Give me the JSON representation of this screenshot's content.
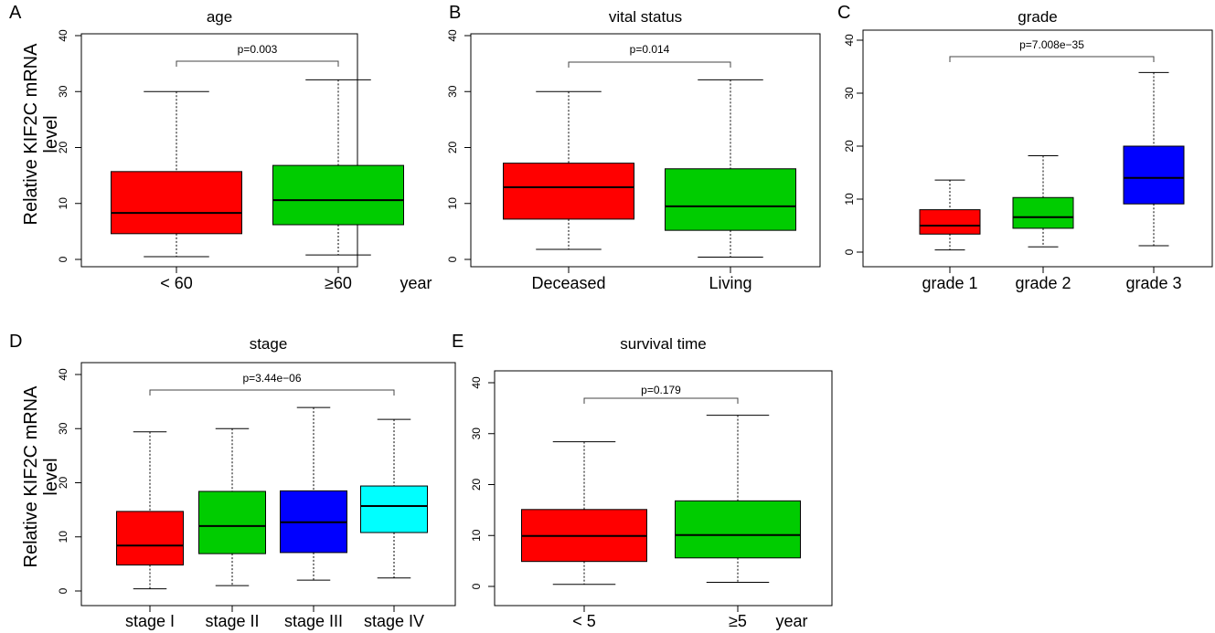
{
  "figure": {
    "ylabel_line1": "Relative KIF2C mRNA",
    "ylabel_line2": "level"
  },
  "chart_data": [
    {
      "panel": "A",
      "type": "box",
      "title": "age",
      "ylim": [
        0,
        40
      ],
      "yticks": [
        "0",
        "10",
        "20",
        "30",
        "40"
      ],
      "categories": [
        "< 60",
        "≥60"
      ],
      "unit_label": "year",
      "pvalue": "p=0.003",
      "colors": [
        "#ff0000",
        "#00cc00"
      ],
      "boxes": [
        {
          "min": 0.5,
          "q1": 4.6,
          "median": 8.3,
          "q3": 15.7,
          "max": 30.0
        },
        {
          "min": 0.8,
          "q1": 6.2,
          "median": 10.6,
          "q3": 16.8,
          "max": 32.1
        }
      ]
    },
    {
      "panel": "B",
      "type": "box",
      "title": "vital status",
      "ylim": [
        0,
        40
      ],
      "yticks": [
        "0",
        "10",
        "20",
        "30",
        "40"
      ],
      "categories": [
        "Deceased",
        "Living"
      ],
      "unit_label": "",
      "pvalue": "p=0.014",
      "colors": [
        "#ff0000",
        "#00cc00"
      ],
      "boxes": [
        {
          "min": 1.8,
          "q1": 7.2,
          "median": 12.9,
          "q3": 17.2,
          "max": 30.0
        },
        {
          "min": 0.4,
          "q1": 5.2,
          "median": 9.5,
          "q3": 16.2,
          "max": 32.1
        }
      ]
    },
    {
      "panel": "C",
      "type": "box",
      "title": "grade",
      "ylim": [
        0,
        40
      ],
      "yticks": [
        "0",
        "10",
        "20",
        "30",
        "40"
      ],
      "categories": [
        "grade 1",
        "grade 2",
        "grade 3"
      ],
      "unit_label": "",
      "pvalue": "p=7.008e−35",
      "colors": [
        "#ff0000",
        "#00cc00",
        "#0000ff"
      ],
      "boxes": [
        {
          "min": 0.4,
          "q1": 3.4,
          "median": 5.0,
          "q3": 8.0,
          "max": 13.6
        },
        {
          "min": 1.0,
          "q1": 4.5,
          "median": 6.6,
          "q3": 10.3,
          "max": 18.2
        },
        {
          "min": 1.2,
          "q1": 9.1,
          "median": 14.0,
          "q3": 20.0,
          "max": 33.9
        }
      ]
    },
    {
      "panel": "D",
      "type": "box",
      "title": "stage",
      "ylim": [
        0,
        40
      ],
      "yticks": [
        "0",
        "10",
        "20",
        "30",
        "40"
      ],
      "categories": [
        "stage I",
        "stage II",
        "stage III",
        "stage IV"
      ],
      "unit_label": "",
      "pvalue": "p=3.44e−06",
      "colors": [
        "#ff0000",
        "#00cc00",
        "#0000ff",
        "#00ffff"
      ],
      "boxes": [
        {
          "min": 0.4,
          "q1": 4.8,
          "median": 8.4,
          "q3": 14.7,
          "max": 29.4
        },
        {
          "min": 1.0,
          "q1": 6.9,
          "median": 12.0,
          "q3": 18.4,
          "max": 30.0
        },
        {
          "min": 2.0,
          "q1": 7.1,
          "median": 12.7,
          "q3": 18.5,
          "max": 33.9
        },
        {
          "min": 2.4,
          "q1": 10.8,
          "median": 15.7,
          "q3": 19.4,
          "max": 31.7
        }
      ]
    },
    {
      "panel": "E",
      "type": "box",
      "title": "survival time",
      "ylim": [
        0,
        40
      ],
      "yticks": [
        "0",
        "10",
        "20",
        "30",
        "40"
      ],
      "categories": [
        "< 5",
        "≥5"
      ],
      "unit_label": "year",
      "pvalue": "p=0.179",
      "colors": [
        "#ff0000",
        "#00cc00"
      ],
      "boxes": [
        {
          "min": 0.4,
          "q1": 4.9,
          "median": 9.9,
          "q3": 15.1,
          "max": 28.4
        },
        {
          "min": 0.8,
          "q1": 5.6,
          "median": 10.1,
          "q3": 16.8,
          "max": 33.6
        }
      ]
    }
  ]
}
